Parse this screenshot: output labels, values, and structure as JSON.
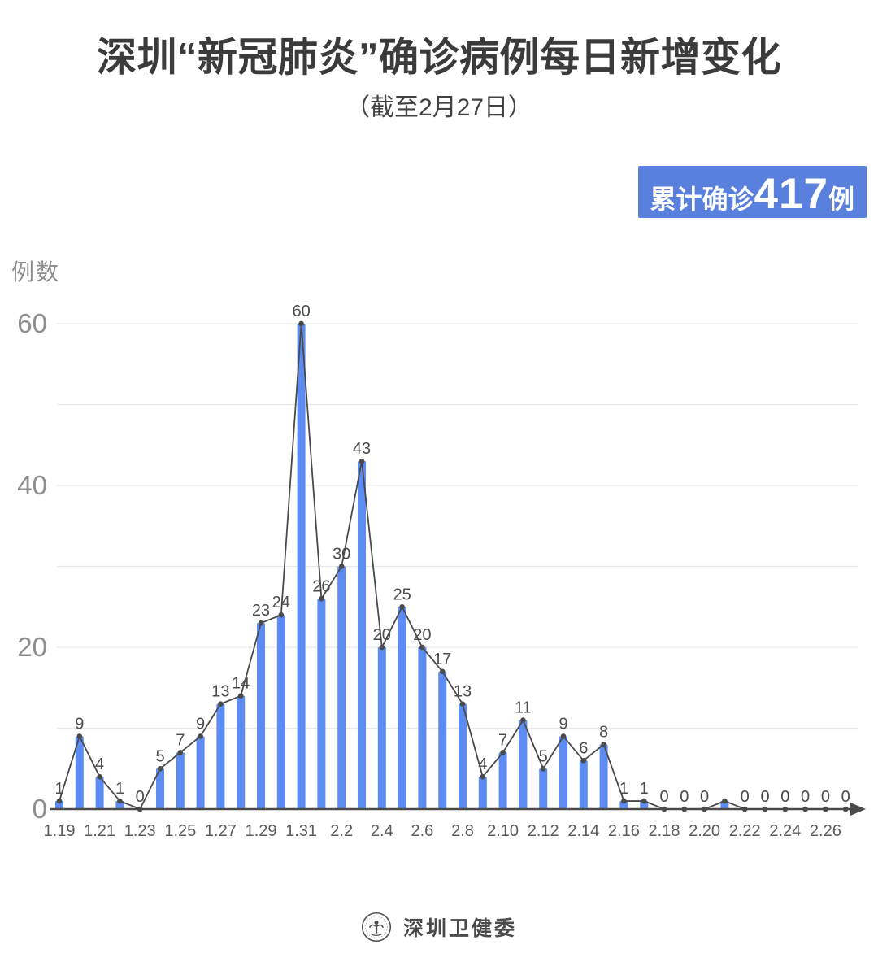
{
  "badge": {
    "prefix": "累计确诊",
    "value": "417",
    "suffix": "例",
    "color": "#5A80DD"
  },
  "chart_data": {
    "type": "bar+line",
    "title": "深圳“新冠肺炎”确诊病例每日新增变化",
    "subtitle": "（截至2月27日）",
    "ylabel": "例数",
    "xlabel": "",
    "ylim": [
      0,
      60
    ],
    "yticks": [
      0,
      20,
      40,
      60
    ],
    "grid_step": 10,
    "grid_on": true,
    "categories": [
      "1.19",
      "1.20",
      "1.21",
      "1.22",
      "1.23",
      "1.24",
      "1.25",
      "1.26",
      "1.27",
      "1.28",
      "1.29",
      "1.30",
      "1.31",
      "2.1",
      "2.2",
      "2.3",
      "2.4",
      "2.5",
      "2.6",
      "2.7",
      "2.8",
      "2.9",
      "2.10",
      "2.11",
      "2.12",
      "2.13",
      "2.14",
      "2.15",
      "2.16",
      "2.17",
      "2.18",
      "2.19",
      "2.20",
      "2.21",
      "2.22",
      "2.23",
      "2.24",
      "2.25",
      "2.26",
      "2.27"
    ],
    "values": [
      1,
      9,
      4,
      1,
      0,
      5,
      7,
      9,
      13,
      14,
      23,
      24,
      60,
      26,
      30,
      43,
      20,
      25,
      20,
      17,
      13,
      4,
      7,
      11,
      5,
      9,
      6,
      8,
      1,
      1,
      0,
      0,
      0,
      1,
      0,
      0,
      0,
      0,
      0,
      0
    ],
    "value_labels": [
      "1",
      "9",
      "4",
      "1",
      "0",
      "5",
      "7",
      "9",
      "13",
      "14",
      "23",
      "24",
      "60",
      "26",
      "30",
      "43",
      "20",
      "25",
      "20",
      "17",
      "13",
      "4",
      "7",
      "11",
      "5",
      "9",
      "6",
      "8",
      "1",
      "1",
      "0",
      "0",
      "0",
      "",
      "0",
      "0",
      "0",
      "0",
      "0",
      "0"
    ],
    "xtick_every": 2,
    "bar_color": "#5C8CF2",
    "line_color": "#4A4A4A",
    "grid_color": "#E8E8E8",
    "ytick_color": "#8E8E8E",
    "date_label_color": "#5C5C5C",
    "value_label_color": "#4C4C4C"
  },
  "footer": {
    "org": "深圳卫健委",
    "logo": "shenzhen-health-commission-emblem"
  }
}
